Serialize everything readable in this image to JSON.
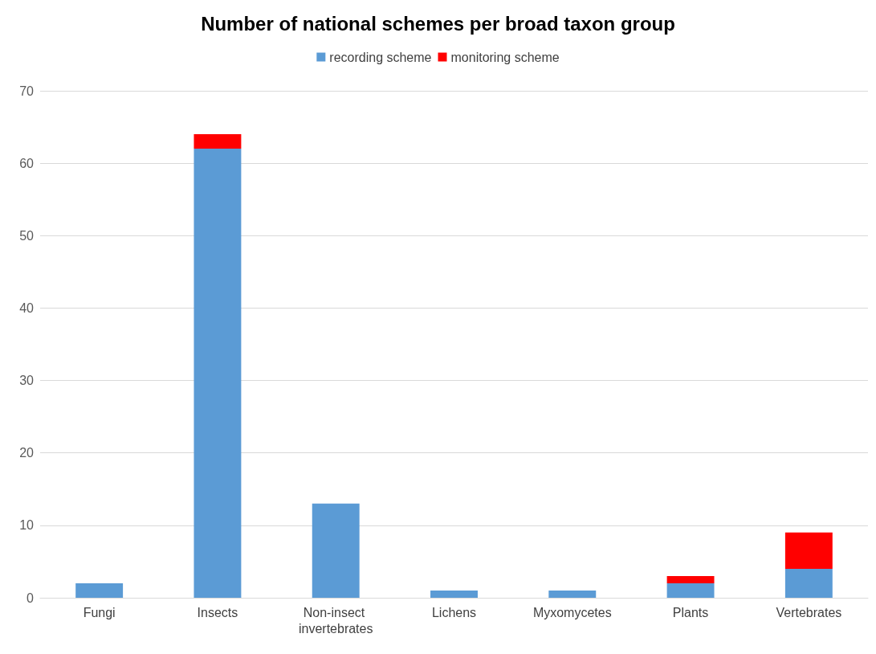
{
  "chart_data": {
    "type": "bar",
    "title": "Number of national schemes per broad taxon group",
    "categories": [
      "Fungi",
      "Insects",
      "Non-insect invertebrates",
      "Lichens",
      "Myxomycetes",
      "Plants",
      "Vertebrates"
    ],
    "series": [
      {
        "name": "recording scheme",
        "color": "#5b9bd5",
        "values": [
          2,
          62,
          13,
          1,
          1,
          2,
          4
        ]
      },
      {
        "name": "monitoring scheme",
        "color": "#ff0000",
        "values": [
          0,
          2,
          0,
          0,
          0,
          1,
          5
        ]
      }
    ],
    "stacked": true,
    "ylim": [
      0,
      70
    ],
    "yticks": [
      0,
      10,
      20,
      30,
      40,
      50,
      60,
      70
    ],
    "grid": "y",
    "legend": "top"
  }
}
